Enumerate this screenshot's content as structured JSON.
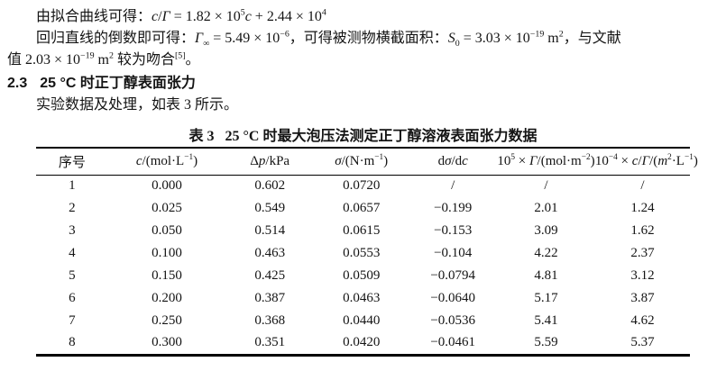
{
  "doc": {
    "p1": [
      {
        "t": "由拟合曲线可得："
      },
      {
        "t": "c",
        "s": "i"
      },
      {
        "t": "/"
      },
      {
        "t": "Γ",
        "s": "i"
      },
      {
        "t": " = 1.82 × 10"
      },
      {
        "t": "5",
        "s": "sup"
      },
      {
        "t": "c",
        "s": "i"
      },
      {
        "t": " + 2.44 × 10"
      },
      {
        "t": "4",
        "s": "sup"
      }
    ],
    "p2": [
      {
        "t": "回归直线的倒数即可得："
      },
      {
        "t": "Γ",
        "s": "i"
      },
      {
        "t": "∞",
        "s": "sub"
      },
      {
        "t": " = 5.49 × 10"
      },
      {
        "t": "−6",
        "s": "sup"
      },
      {
        "t": "，可得被测物横截面积："
      },
      {
        "t": "S",
        "s": "i"
      },
      {
        "t": "0",
        "s": "sub"
      },
      {
        "t": " = 3.03 × 10"
      },
      {
        "t": "−19",
        "s": "sup"
      },
      {
        "t": " m"
      },
      {
        "t": "2",
        "s": "sup"
      },
      {
        "t": "，与文献"
      }
    ],
    "p3": [
      {
        "t": "值 2.03 × 10"
      },
      {
        "t": "−19",
        "s": "sup"
      },
      {
        "t": " m"
      },
      {
        "t": "2",
        "s": "sup"
      },
      {
        "t": " 较为吻合"
      },
      {
        "t": "[5]",
        "s": "sup"
      },
      {
        "t": "。"
      }
    ],
    "heading": {
      "number": "2.3",
      "title": "25 °C 时正丁醇表面张力"
    },
    "p4": "实验数据及处理，如表 3 所示。"
  },
  "table": {
    "caption": {
      "label": "表 3",
      "title": "25 °C 时最大泡压法测定正丁醇溶液表面张力数据"
    },
    "headers": [
      {
        "parts": [
          {
            "t": "序号"
          }
        ]
      },
      {
        "parts": [
          {
            "t": "c",
            "s": "i"
          },
          {
            "t": "/(mol·L"
          },
          {
            "t": "−1",
            "s": "sup"
          },
          {
            "t": ")"
          }
        ]
      },
      {
        "parts": [
          {
            "t": "Δ"
          },
          {
            "t": "p",
            "s": "i"
          },
          {
            "t": "/kPa"
          }
        ]
      },
      {
        "parts": [
          {
            "t": "σ",
            "s": "i"
          },
          {
            "t": "/(N·m"
          },
          {
            "t": "−1",
            "s": "sup"
          },
          {
            "t": ")"
          }
        ]
      },
      {
        "parts": [
          {
            "t": "d"
          },
          {
            "t": "σ",
            "s": "i"
          },
          {
            "t": "/d"
          },
          {
            "t": "c",
            "s": "i"
          }
        ]
      },
      {
        "parts": [
          {
            "t": "10"
          },
          {
            "t": "5",
            "s": "sup"
          },
          {
            "t": " × "
          },
          {
            "t": "Γ",
            "s": "i"
          },
          {
            "t": "/(mol·m"
          },
          {
            "t": "−2",
            "s": "sup"
          },
          {
            "t": ")"
          }
        ]
      },
      {
        "parts": [
          {
            "t": "10"
          },
          {
            "t": "−4",
            "s": "sup"
          },
          {
            "t": " × "
          },
          {
            "t": "c",
            "s": "i"
          },
          {
            "t": "/"
          },
          {
            "t": "Γ",
            "s": "i"
          },
          {
            "t": "/("
          },
          {
            "t": "m",
            "s": "i"
          },
          {
            "t": "2",
            "s": "sup"
          },
          {
            "t": "·L"
          },
          {
            "t": "−1",
            "s": "sup"
          },
          {
            "t": ")"
          }
        ]
      }
    ],
    "rows": [
      [
        "1",
        "0.000",
        "0.602",
        "0.0720",
        "/",
        "/",
        "/"
      ],
      [
        "2",
        "0.025",
        "0.549",
        "0.0657",
        "−0.199",
        "2.01",
        "1.24"
      ],
      [
        "3",
        "0.050",
        "0.514",
        "0.0615",
        "−0.153",
        "3.09",
        "1.62"
      ],
      [
        "4",
        "0.100",
        "0.463",
        "0.0553",
        "−0.104",
        "4.22",
        "2.37"
      ],
      [
        "5",
        "0.150",
        "0.425",
        "0.0509",
        "−0.0794",
        "4.81",
        "3.12"
      ],
      [
        "6",
        "0.200",
        "0.387",
        "0.0463",
        "−0.0640",
        "5.17",
        "3.87"
      ],
      [
        "7",
        "0.250",
        "0.368",
        "0.0440",
        "−0.0536",
        "5.41",
        "4.62"
      ],
      [
        "8",
        "0.300",
        "0.351",
        "0.0420",
        "−0.0461",
        "5.59",
        "5.37"
      ]
    ]
  }
}
